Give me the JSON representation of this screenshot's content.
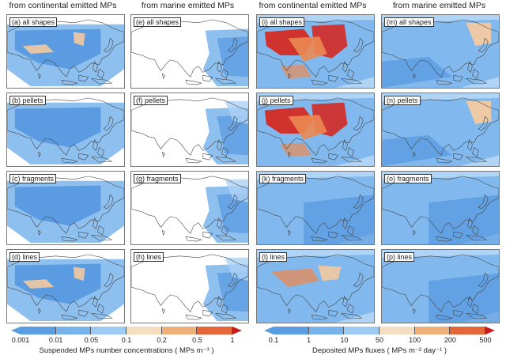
{
  "column_headers": [
    "from continental emitted MPs",
    "from marine emitted MPs",
    "from continental emitted MPs",
    "from marine emitted MPs"
  ],
  "panels": [
    {
      "label": "(a) all shapes",
      "field": "suspended",
      "source": "continental",
      "intensity": "medium"
    },
    {
      "label": "(e) all shapes",
      "field": "suspended",
      "source": "marine",
      "intensity": "low"
    },
    {
      "label": "(i) all shapes",
      "field": "deposited",
      "source": "continental",
      "intensity": "high"
    },
    {
      "label": "(m) all shapes",
      "field": "deposited",
      "source": "marine",
      "intensity": "medium"
    },
    {
      "label": "(b) pellets",
      "field": "suspended",
      "source": "continental",
      "intensity": "low"
    },
    {
      "label": "(f) pellets",
      "field": "suspended",
      "source": "marine",
      "intensity": "verylow"
    },
    {
      "label": "(j) pellets",
      "field": "deposited",
      "source": "continental",
      "intensity": "high"
    },
    {
      "label": "(n) pellets",
      "field": "deposited",
      "source": "marine",
      "intensity": "medium"
    },
    {
      "label": "(c) fragments",
      "field": "suspended",
      "source": "continental",
      "intensity": "low"
    },
    {
      "label": "(g) fragments",
      "field": "suspended",
      "source": "marine",
      "intensity": "verylow"
    },
    {
      "label": "(k) fragments",
      "field": "deposited",
      "source": "continental",
      "intensity": "low"
    },
    {
      "label": "(o) fragments",
      "field": "deposited",
      "source": "marine",
      "intensity": "low"
    },
    {
      "label": "(d) lines",
      "field": "suspended",
      "source": "continental",
      "intensity": "medium"
    },
    {
      "label": "(h) lines",
      "field": "suspended",
      "source": "marine",
      "intensity": "verylow"
    },
    {
      "label": "(l) lines",
      "field": "deposited",
      "source": "continental",
      "intensity": "medium"
    },
    {
      "label": "(p) lines",
      "field": "deposited",
      "source": "marine",
      "intensity": "low"
    }
  ],
  "legend_suspended": {
    "ticks": [
      "0.001",
      "0.01",
      "0.05",
      "0.1",
      "0.2",
      "0.5",
      "1"
    ],
    "title": "Suspended MPs number concentrations ( MPs m⁻³ )",
    "colors": [
      "#5a9de0",
      "#78b3ec",
      "#9ecbf4",
      "#f4ddc0",
      "#f0b07a",
      "#e4673a",
      "#c91d1d"
    ]
  },
  "legend_deposited": {
    "ticks": [
      "0.1",
      "1",
      "10",
      "50",
      "100",
      "200",
      "500"
    ],
    "title": "Deposited MPs fluxes ( MPs m⁻² day⁻¹ )",
    "colors": [
      "#5a9de0",
      "#78b3ec",
      "#9ecbf4",
      "#f4ddc0",
      "#f0b07a",
      "#e4673a",
      "#c91d1d"
    ]
  },
  "palette": {
    "land_outline": "#444444",
    "ocean_base": "#ffffff",
    "blue_dark": "#4e92de",
    "blue_mid": "#79b4ec",
    "blue_light": "#acd2f5",
    "peach": "#f2c9a0",
    "orange": "#eb8a52",
    "red": "#d42a22"
  }
}
